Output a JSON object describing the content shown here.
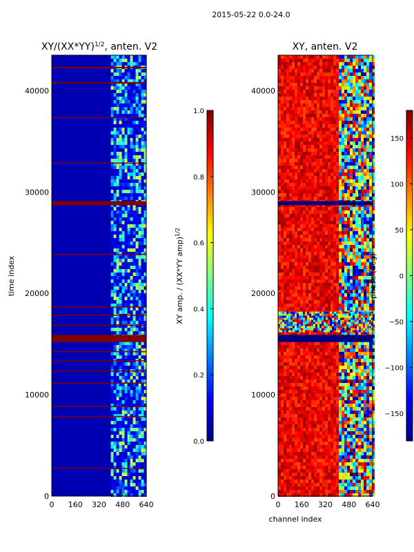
{
  "figure": {
    "suptitle": "2015-05-22 0.0-24.0",
    "xlabel_shared": "channel index"
  },
  "colors": {
    "jet_stops": [
      "#00007f",
      "#0000ff",
      "#007fff",
      "#00ffff",
      "#7fff7f",
      "#ffff00",
      "#ff7f00",
      "#ff0000",
      "#7f0000"
    ]
  },
  "chart_data": [
    {
      "type": "heatmap",
      "title_main": "XY/(XX*YY)",
      "title_exp": "1/2",
      "title_tail": ", anten. V2",
      "xlabel": "",
      "ylabel": "time index",
      "xlim": [
        0,
        640
      ],
      "ylim": [
        0,
        43500
      ],
      "xticks": [
        "0",
        "160",
        "320",
        "480",
        "640"
      ],
      "xtick_values": [
        0,
        160,
        320,
        480,
        640
      ],
      "yticks": [
        "0",
        "10000",
        "20000",
        "30000",
        "40000"
      ],
      "ytick_values": [
        0,
        10000,
        20000,
        30000,
        40000
      ],
      "background_value": 0.05,
      "active_band": {
        "x_from": 400,
        "x_to": 640,
        "value_range": [
          0.1,
          0.6
        ]
      },
      "saturated_rows": [
        {
          "y_from": 15200,
          "y_to": 15900,
          "value": 1.0
        },
        {
          "y_from": 28700,
          "y_to": 29100,
          "value": 1.0
        },
        {
          "y_from": 42200,
          "y_to": 42350,
          "value": 1.0
        },
        {
          "y_from": 40700,
          "y_to": 40850,
          "value": 1.0
        },
        {
          "y_from": 37300,
          "y_to": 37400,
          "value": 1.0
        },
        {
          "y_from": 32800,
          "y_to": 32900,
          "value": 1.0
        },
        {
          "y_from": 23800,
          "y_to": 23900,
          "value": 1.0
        },
        {
          "y_from": 18600,
          "y_to": 18700,
          "value": 1.0
        },
        {
          "y_from": 17800,
          "y_to": 17900,
          "value": 1.0
        },
        {
          "y_from": 16800,
          "y_to": 16900,
          "value": 1.0
        },
        {
          "y_from": 14200,
          "y_to": 14300,
          "value": 1.0
        },
        {
          "y_from": 13300,
          "y_to": 13400,
          "value": 1.0
        },
        {
          "y_from": 12300,
          "y_to": 12400,
          "value": 1.0
        },
        {
          "y_from": 11100,
          "y_to": 11200,
          "value": 1.0
        },
        {
          "y_from": 8800,
          "y_to": 8900,
          "value": 1.0
        },
        {
          "y_from": 7800,
          "y_to": 7900,
          "value": 1.0
        },
        {
          "y_from": 2700,
          "y_to": 2800,
          "value": 1.0
        }
      ],
      "colorbar": {
        "label_main": "XY amp. / (XX*YY amp)",
        "label_exp": "1/2",
        "range": [
          0.0,
          1.0
        ],
        "ticks": [
          "0.0",
          "0.2",
          "0.4",
          "0.6",
          "0.8",
          "1.0"
        ],
        "tick_values": [
          0.0,
          0.2,
          0.4,
          0.6,
          0.8,
          1.0
        ]
      }
    },
    {
      "type": "heatmap",
      "title": "XY, anten. V2",
      "xlabel": "channel index",
      "ylabel": "",
      "xlim": [
        0,
        640
      ],
      "ylim": [
        0,
        43500
      ],
      "xticks": [
        "0",
        "160",
        "320",
        "480",
        "640"
      ],
      "xtick_values": [
        0,
        160,
        320,
        480,
        640
      ],
      "yticks": [
        "0",
        "10000",
        "20000",
        "30000",
        "40000"
      ],
      "ytick_values": [
        0,
        10000,
        20000,
        30000,
        40000
      ],
      "background_value_deg": 150,
      "mixed_band": {
        "x_from": 400,
        "x_to": 640,
        "value_range_deg": [
          -180,
          180
        ]
      },
      "noisy_rows": {
        "y_from": 16200,
        "y_to": 18200
      },
      "dark_rows": [
        {
          "y_from": 15200,
          "y_to": 15900
        },
        {
          "y_from": 28700,
          "y_to": 29100
        }
      ],
      "colorbar": {
        "label": "phase (deg)",
        "range": [
          -180,
          180
        ],
        "ticks": [
          "−150",
          "−100",
          "−50",
          "0",
          "50",
          "100",
          "150"
        ],
        "tick_values": [
          -150,
          -100,
          -50,
          0,
          50,
          100,
          150
        ]
      }
    }
  ]
}
